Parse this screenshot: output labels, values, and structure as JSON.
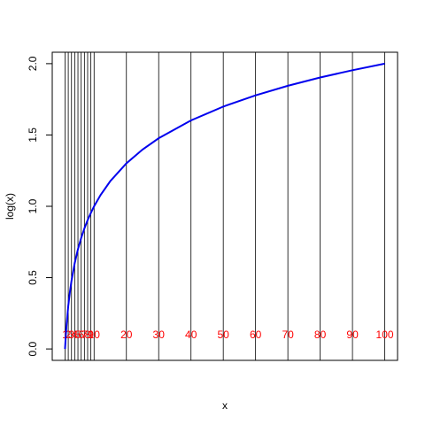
{
  "chart_data": {
    "type": "line",
    "xlabel": "x",
    "ylabel": "log(x)",
    "x": [
      1,
      1.2,
      1.5,
      2,
      2.5,
      3,
      4,
      5,
      6,
      7,
      8,
      9,
      10,
      12,
      15,
      20,
      25,
      30,
      40,
      50,
      60,
      70,
      80,
      90,
      100
    ],
    "series": [
      {
        "color": "#0000ee",
        "values": [
          0,
          0.079,
          0.176,
          0.301,
          0.398,
          0.477,
          0.602,
          0.699,
          0.778,
          0.845,
          0.903,
          0.954,
          1,
          1.079,
          1.176,
          1.301,
          1.398,
          1.477,
          1.602,
          1.699,
          1.778,
          1.845,
          1.903,
          1.954,
          2
        ]
      }
    ],
    "vlines": [
      1,
      2,
      3,
      4,
      5,
      6,
      7,
      8,
      9,
      10,
      20,
      30,
      40,
      50,
      60,
      70,
      80,
      90,
      100
    ],
    "vline_color": "#000000",
    "label_color": "#ff0000",
    "xlim": [
      -2.96,
      103.96
    ],
    "ylim": [
      -0.08,
      2.08
    ],
    "yticks": [
      {
        "value": 0,
        "label": "0.0"
      },
      {
        "value": 0.5,
        "label": "0.5"
      },
      {
        "value": 1,
        "label": "1.0"
      },
      {
        "value": 1.5,
        "label": "1.5"
      },
      {
        "value": 2,
        "label": "2.0"
      }
    ]
  }
}
